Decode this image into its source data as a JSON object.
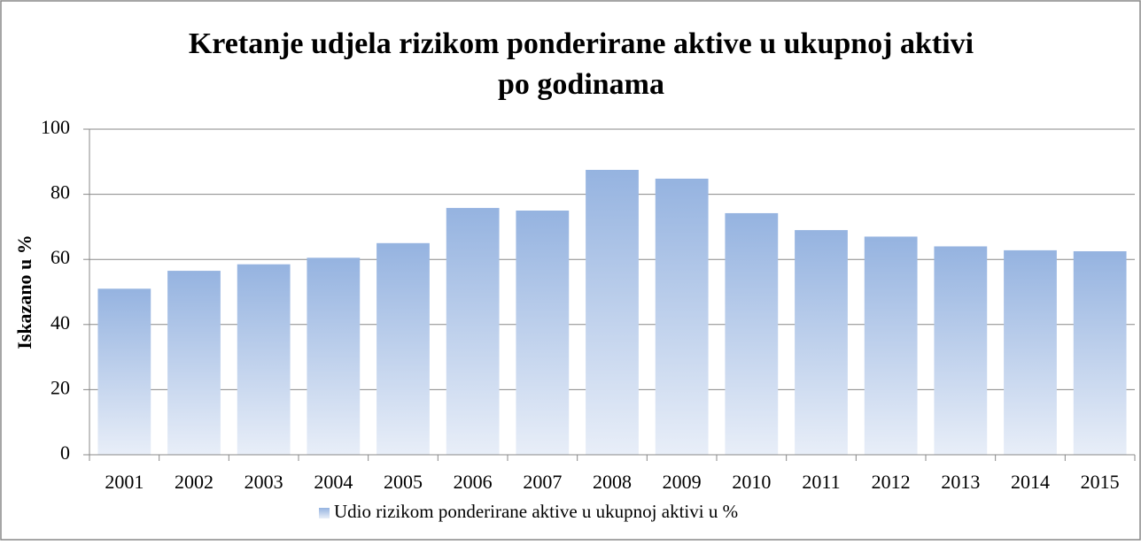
{
  "chart_data": {
    "type": "bar",
    "title": [
      "Kretanje udjela rizikom ponderirane aktive u ukupnoj aktivi",
      "po godinama"
    ],
    "y_label": "Iskazano u %",
    "categories": [
      "2001",
      "2002",
      "2003",
      "2004",
      "2005",
      "2006",
      "2007",
      "2008",
      "2009",
      "2010",
      "2011",
      "2012",
      "2013",
      "2014",
      "2015"
    ],
    "series": [
      {
        "name": "Udio rizikom ponderirane aktive u ukupnoj aktivi  u %",
        "color": "#95b3e0",
        "values": [
          51,
          56.5,
          58.5,
          60.5,
          65,
          75.8,
          75,
          87.5,
          84.8,
          74.2,
          69,
          67,
          64,
          62.8,
          62.5
        ]
      }
    ],
    "ylim": [
      0,
      100
    ],
    "yticks": [
      0,
      20,
      40,
      60,
      80,
      100
    ],
    "grid": true,
    "legend": "bottom"
  }
}
